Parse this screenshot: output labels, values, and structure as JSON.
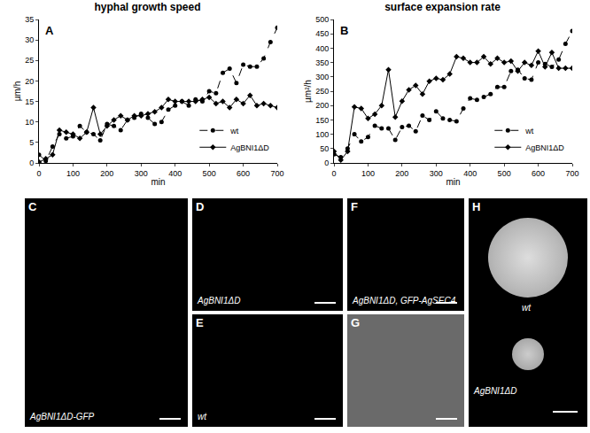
{
  "chart_data": [
    {
      "type": "line",
      "title": "hyphal growth speed",
      "x_label": "min",
      "y_label": "µm/h",
      "annotations": [
        {
          "text": "A"
        }
      ],
      "x": [
        0,
        20,
        40,
        60,
        80,
        100,
        120,
        140,
        160,
        180,
        200,
        220,
        240,
        260,
        280,
        300,
        320,
        340,
        360,
        380,
        400,
        420,
        440,
        460,
        480,
        500,
        520,
        540,
        560,
        580,
        600,
        620,
        640,
        660,
        680,
        700
      ],
      "series": [
        {
          "name": "wt",
          "color": "#000000",
          "marker": "circle",
          "line_style": "dashed",
          "values": [
            2,
            0.5,
            4,
            7,
            6,
            6.5,
            9,
            7.5,
            7,
            5.5,
            9.5,
            9,
            8,
            10.5,
            11,
            12,
            11,
            9.5,
            10,
            13,
            14,
            15,
            14,
            15.5,
            15,
            17.5,
            17,
            22,
            23,
            19.5,
            24,
            23.5,
            23.5,
            25.5,
            29.5,
            33
          ]
        },
        {
          "name": "AgBNI1ΔD",
          "color": "#000000",
          "marker": "diamond",
          "line_style": "solid",
          "values": [
            0.2,
            1,
            2,
            8,
            7.5,
            7,
            6,
            7.5,
            13.5,
            7,
            9,
            10.5,
            11.5,
            10.5,
            11.5,
            11.5,
            12,
            12.5,
            13.5,
            15.5,
            15,
            15,
            15,
            15,
            15.5,
            16,
            14.5,
            15,
            13.5,
            15.5,
            14.5,
            16.5,
            14,
            14.5,
            14,
            13.5
          ]
        }
      ],
      "xlim": [
        0,
        700
      ],
      "xticks": [
        0,
        100,
        200,
        300,
        400,
        500,
        600,
        700
      ],
      "ylim": [
        0,
        35
      ],
      "yticks": [
        0,
        5,
        10,
        15,
        20,
        25,
        30,
        35
      ],
      "grid": false,
      "legend": "bottom-right"
    },
    {
      "type": "line",
      "title": "surface expansion rate",
      "x_label": "min",
      "y_label": "µm²/h",
      "annotations": [
        {
          "text": "B"
        }
      ],
      "x": [
        0,
        20,
        40,
        60,
        80,
        100,
        120,
        140,
        160,
        180,
        200,
        220,
        240,
        260,
        280,
        300,
        320,
        340,
        360,
        380,
        400,
        420,
        440,
        460,
        480,
        500,
        520,
        540,
        560,
        580,
        600,
        620,
        640,
        660,
        680,
        700
      ],
      "series": [
        {
          "name": "wt",
          "color": "#000000",
          "marker": "circle",
          "line_style": "dashed",
          "values": [
            30,
            20,
            50,
            100,
            75,
            90,
            130,
            120,
            120,
            80,
            125,
            130,
            110,
            165,
            150,
            180,
            155,
            150,
            145,
            190,
            225,
            220,
            230,
            240,
            265,
            265,
            320,
            325,
            295,
            290,
            350,
            345,
            335,
            360,
            415,
            460
          ]
        },
        {
          "name": "AgBNI1ΔD",
          "color": "#000000",
          "marker": "diamond",
          "line_style": "solid",
          "values": [
            40,
            10,
            40,
            195,
            190,
            155,
            170,
            200,
            325,
            160,
            215,
            255,
            270,
            240,
            285,
            295,
            290,
            310,
            370,
            365,
            350,
            350,
            370,
            345,
            365,
            350,
            355,
            320,
            350,
            340,
            390,
            335,
            385,
            330,
            330,
            330
          ]
        }
      ],
      "xlim": [
        0,
        700
      ],
      "xticks": [
        0,
        100,
        200,
        300,
        400,
        500,
        600,
        700
      ],
      "ylim": [
        0,
        500
      ],
      "yticks": [
        0,
        50,
        100,
        150,
        200,
        250,
        300,
        350,
        400,
        450,
        500
      ],
      "grid": false,
      "legend": "bottom-right"
    }
  ],
  "panels": [
    {
      "label": "C",
      "captions": [
        "AgBNI1ΔD-GFP"
      ]
    },
    {
      "label": "D",
      "captions": [
        "AgBNI1ΔD"
      ]
    },
    {
      "label": "E",
      "captions": [
        "wt"
      ]
    },
    {
      "label": "F",
      "captions": [
        "AgBNI1ΔD, GFP-AgSEC4"
      ]
    },
    {
      "label": "G",
      "captions": []
    },
    {
      "label": "H",
      "captions": [
        "wt",
        "AgBNI1ΔD"
      ]
    }
  ]
}
